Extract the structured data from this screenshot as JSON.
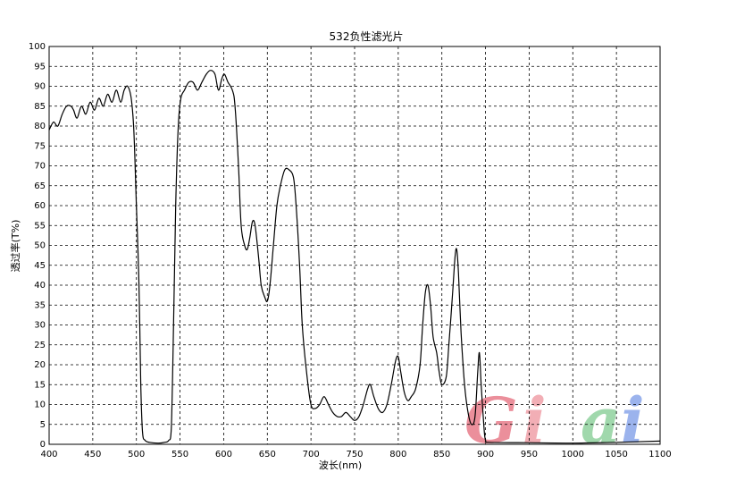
{
  "chart_data": {
    "type": "line",
    "title": "532负性滤光片",
    "xlabel": "波长(nm)",
    "ylabel": "透过率(T%)",
    "xlim": [
      400,
      1100
    ],
    "ylim": [
      0,
      100
    ],
    "x_ticks": [
      400,
      450,
      500,
      550,
      600,
      650,
      700,
      750,
      800,
      850,
      900,
      950,
      1000,
      1050,
      1100
    ],
    "y_ticks": [
      0,
      5,
      10,
      15,
      20,
      25,
      30,
      35,
      40,
      45,
      50,
      55,
      60,
      65,
      70,
      75,
      80,
      85,
      90,
      95,
      100
    ],
    "grid": true,
    "series": [
      {
        "points": [
          [
            400,
            79
          ],
          [
            405,
            81
          ],
          [
            410,
            80
          ],
          [
            415,
            83
          ],
          [
            420,
            85
          ],
          [
            425,
            85
          ],
          [
            428,
            84
          ],
          [
            432,
            82
          ],
          [
            437,
            85
          ],
          [
            442,
            83
          ],
          [
            447,
            86
          ],
          [
            452,
            84
          ],
          [
            457,
            87
          ],
          [
            462,
            85
          ],
          [
            467,
            88
          ],
          [
            472,
            86
          ],
          [
            477,
            89
          ],
          [
            482,
            86
          ],
          [
            486,
            89
          ],
          [
            490,
            90
          ],
          [
            494,
            87
          ],
          [
            497,
            79
          ],
          [
            500,
            60
          ],
          [
            503,
            40
          ],
          [
            505,
            15
          ],
          [
            507,
            3
          ],
          [
            510,
            1
          ],
          [
            515,
            0.5
          ],
          [
            525,
            0.3
          ],
          [
            532,
            0.5
          ],
          [
            537,
            1
          ],
          [
            540,
            4
          ],
          [
            543,
            35
          ],
          [
            545,
            60
          ],
          [
            548,
            80
          ],
          [
            551,
            87
          ],
          [
            555,
            89
          ],
          [
            560,
            91
          ],
          [
            565,
            91
          ],
          [
            570,
            89
          ],
          [
            575,
            91
          ],
          [
            580,
            93
          ],
          [
            585,
            94
          ],
          [
            590,
            93
          ],
          [
            594,
            89
          ],
          [
            598,
            92
          ],
          [
            601,
            93
          ],
          [
            605,
            91
          ],
          [
            610,
            89
          ],
          [
            613,
            85
          ],
          [
            617,
            70
          ],
          [
            620,
            55
          ],
          [
            624,
            50
          ],
          [
            627,
            49
          ],
          [
            630,
            52
          ],
          [
            633,
            56
          ],
          [
            636,
            55
          ],
          [
            640,
            47
          ],
          [
            643,
            40
          ],
          [
            647,
            37
          ],
          [
            650,
            36
          ],
          [
            653,
            40
          ],
          [
            657,
            50
          ],
          [
            661,
            60
          ],
          [
            665,
            65
          ],
          [
            670,
            69
          ],
          [
            675,
            69
          ],
          [
            680,
            67
          ],
          [
            683,
            60
          ],
          [
            687,
            45
          ],
          [
            690,
            30
          ],
          [
            695,
            18
          ],
          [
            700,
            10
          ],
          [
            705,
            9
          ],
          [
            710,
            10
          ],
          [
            715,
            12
          ],
          [
            720,
            10
          ],
          [
            725,
            8
          ],
          [
            730,
            7
          ],
          [
            735,
            7
          ],
          [
            740,
            8
          ],
          [
            745,
            7
          ],
          [
            750,
            6
          ],
          [
            755,
            7
          ],
          [
            760,
            10
          ],
          [
            765,
            14
          ],
          [
            768,
            15
          ],
          [
            772,
            12
          ],
          [
            777,
            9
          ],
          [
            782,
            8
          ],
          [
            787,
            10
          ],
          [
            792,
            15
          ],
          [
            797,
            21
          ],
          [
            800,
            22
          ],
          [
            803,
            18
          ],
          [
            807,
            13
          ],
          [
            811,
            11
          ],
          [
            815,
            12
          ],
          [
            820,
            14
          ],
          [
            825,
            20
          ],
          [
            828,
            30
          ],
          [
            831,
            38
          ],
          [
            834,
            40
          ],
          [
            837,
            35
          ],
          [
            840,
            27
          ],
          [
            844,
            23
          ],
          [
            847,
            18
          ],
          [
            850,
            15
          ],
          [
            855,
            17
          ],
          [
            858,
            25
          ],
          [
            862,
            37
          ],
          [
            865,
            47
          ],
          [
            867,
            49
          ],
          [
            869,
            43
          ],
          [
            872,
            28
          ],
          [
            876,
            15
          ],
          [
            880,
            8
          ],
          [
            884,
            5
          ],
          [
            888,
            7
          ],
          [
            891,
            18
          ],
          [
            893,
            23
          ],
          [
            895,
            15
          ],
          [
            898,
            5
          ],
          [
            900,
            1
          ],
          [
            905,
            0.5
          ],
          [
            950,
            0.4
          ],
          [
            1000,
            0.3
          ],
          [
            1050,
            0.5
          ],
          [
            1100,
            0.8
          ]
        ]
      }
    ],
    "watermark": {
      "text": "Giai",
      "colors": [
        "#e87b8a",
        "#f0a0a8",
        "#8fd19e",
        "#8aa6ea"
      ]
    }
  }
}
